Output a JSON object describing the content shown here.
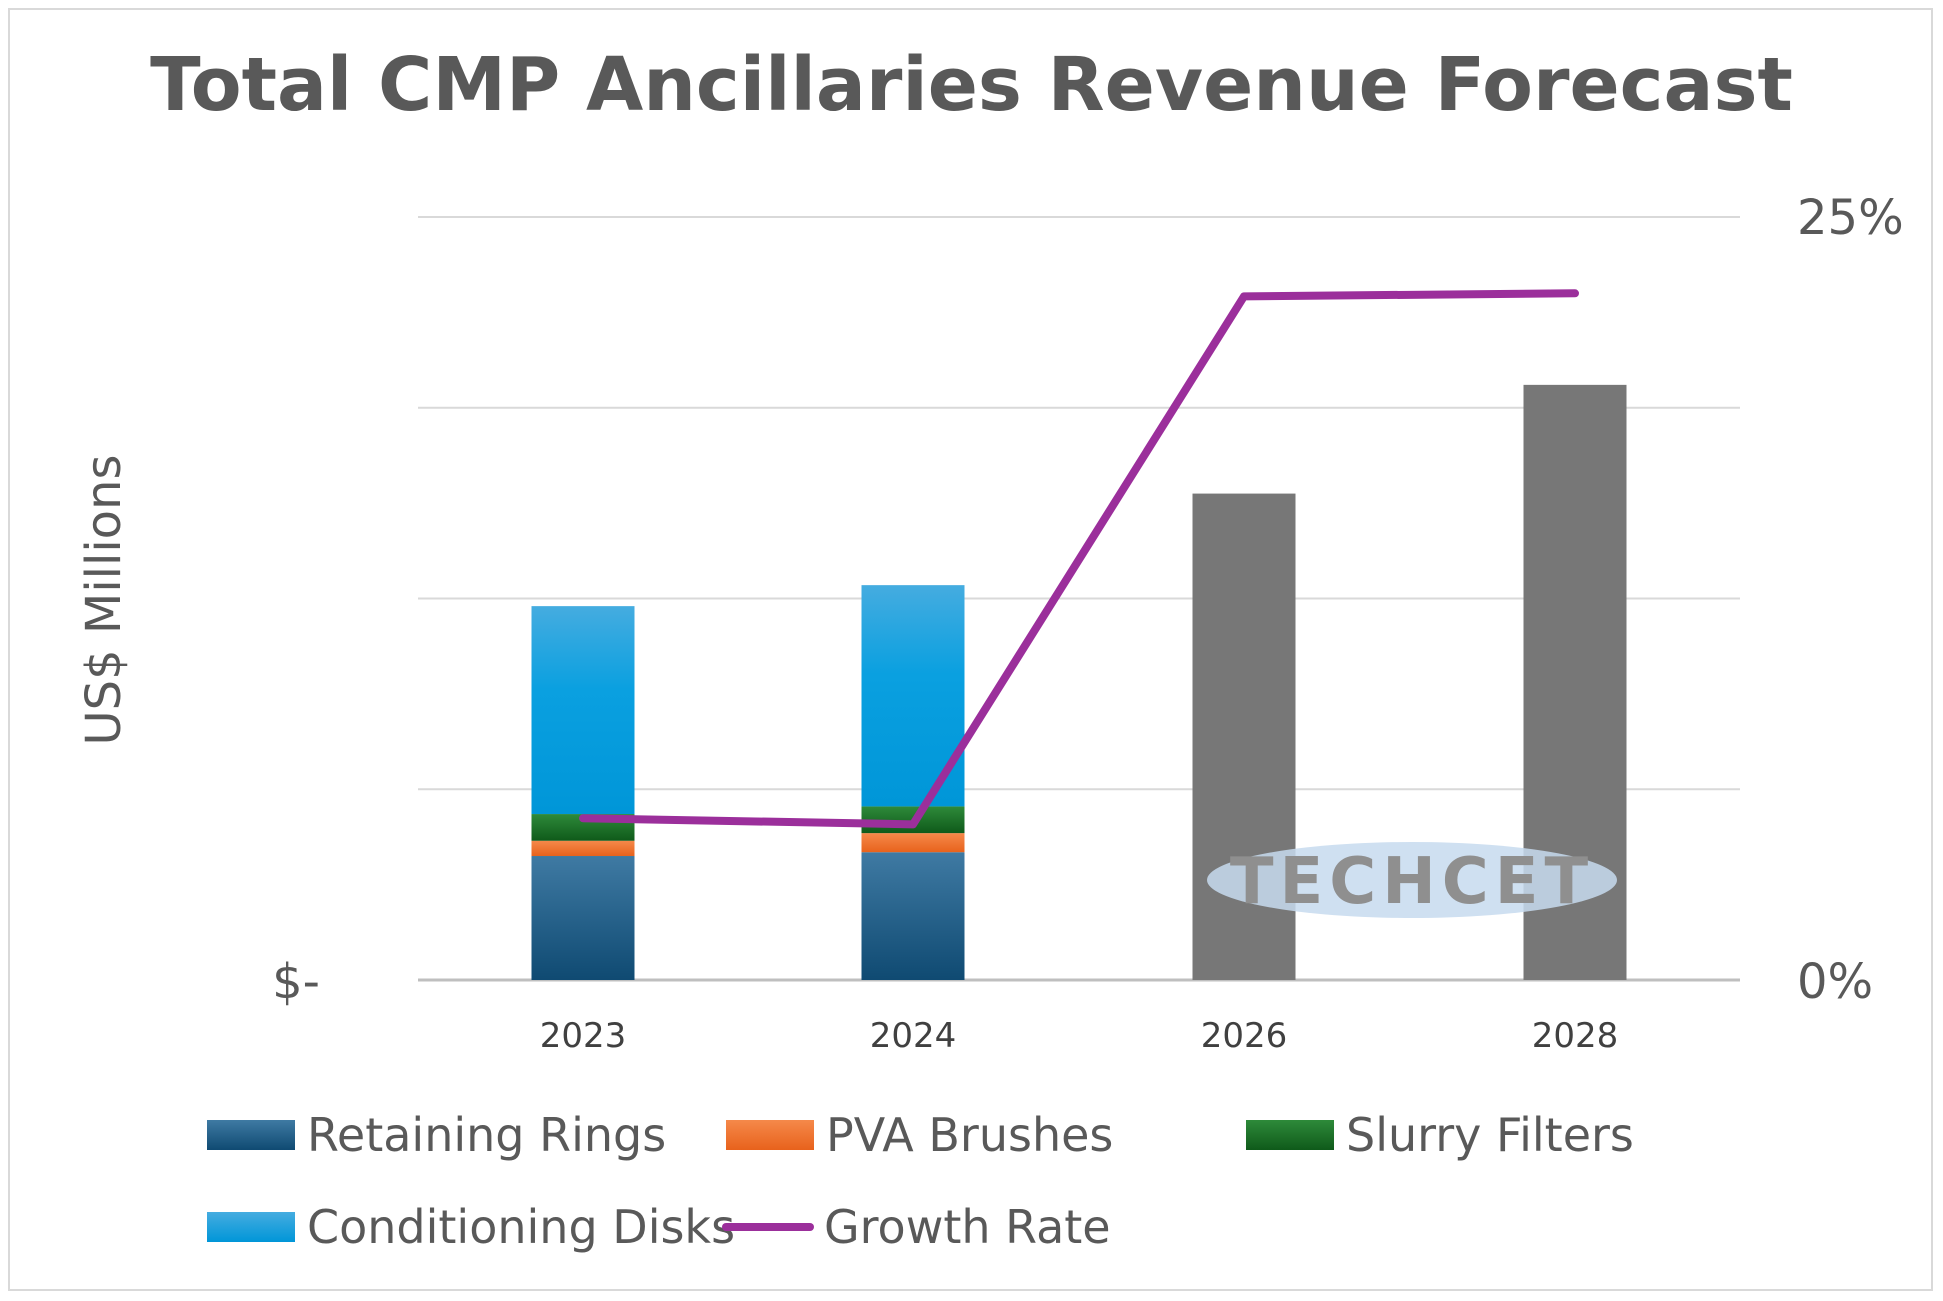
{
  "chart_title": "Total CMP Ancillaries Revenue Forecast",
  "chart_data": {
    "type": "bar",
    "title": "Total CMP Ancillaries Revenue Forecast",
    "categories": [
      "2023",
      "2024",
      "2026",
      "2028"
    ],
    "ylabel": "US$ Millions",
    "y_tick_labels": [
      "$-"
    ],
    "y_right_tick_labels": [
      "0%",
      "25%"
    ],
    "y_right_range": [
      0,
      25
    ],
    "ylim": [
      0,
      4
    ],
    "grid": true,
    "legend_position": "bottom",
    "watermark": "TECHCET",
    "stacked_series": [
      {
        "name": "Retaining Rings",
        "color": "#1f5a80",
        "values": [
          0.65,
          0.67,
          null,
          null
        ]
      },
      {
        "name": "PVA Brushes",
        "color": "#f0742e",
        "values": [
          0.08,
          0.1,
          null,
          null
        ]
      },
      {
        "name": "Slurry Filters",
        "color": "#1e7a2a",
        "values": [
          0.14,
          0.14,
          null,
          null
        ]
      },
      {
        "name": "Conditioning Disks",
        "color": "#1aa3e0",
        "values": [
          1.09,
          1.16,
          null,
          null
        ]
      }
    ],
    "total_series": {
      "color": "#777777",
      "values": [
        null,
        null,
        2.55,
        3.12
      ]
    },
    "line_series": {
      "name": "Growth Rate",
      "color": "#9b2f9b",
      "axis": "right",
      "values": [
        5.3,
        5.1,
        22.4,
        22.5
      ]
    }
  }
}
